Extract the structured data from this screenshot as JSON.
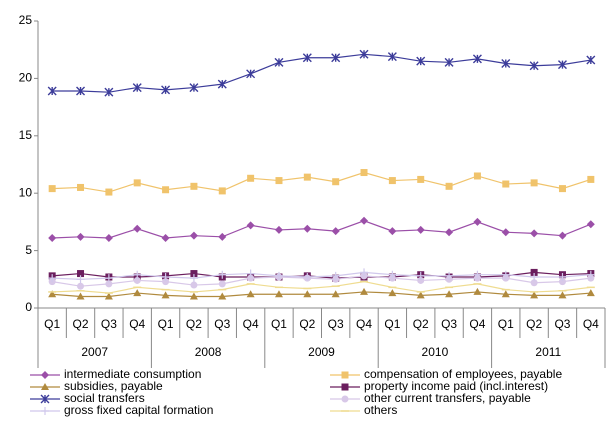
{
  "chart_data": {
    "type": "line",
    "categories": [
      "Q1",
      "Q2",
      "Q3",
      "Q4",
      "Q1",
      "Q2",
      "Q3",
      "Q4",
      "Q1",
      "Q2",
      "Q3",
      "Q4",
      "Q1",
      "Q2",
      "Q3",
      "Q4",
      "Q1",
      "Q2",
      "Q3",
      "Q4"
    ],
    "category_groups": [
      "2007",
      "2008",
      "2009",
      "2010",
      "2011"
    ],
    "ylim": [
      0,
      25
    ],
    "yticks": [
      0,
      5,
      10,
      15,
      20,
      25
    ],
    "legend": "bottom",
    "series": [
      {
        "name": "intermediate consumption",
        "color": "#9b4fa8",
        "marker": "diamond",
        "values": [
          6.1,
          6.2,
          6.1,
          6.9,
          6.1,
          6.3,
          6.2,
          7.2,
          6.8,
          6.9,
          6.7,
          7.6,
          6.7,
          6.8,
          6.6,
          7.5,
          6.6,
          6.5,
          6.3,
          7.3
        ]
      },
      {
        "name": "compensation of employees, payable",
        "color": "#f0c36b",
        "marker": "square",
        "values": [
          10.4,
          10.5,
          10.1,
          10.9,
          10.3,
          10.6,
          10.2,
          11.3,
          11.1,
          11.4,
          11.0,
          11.8,
          11.1,
          11.2,
          10.6,
          11.5,
          10.8,
          10.9,
          10.4,
          11.2
        ]
      },
      {
        "name": "subsidies, payable",
        "color": "#b08a3e",
        "marker": "triangle",
        "values": [
          1.2,
          1.0,
          1.0,
          1.3,
          1.1,
          1.0,
          1.0,
          1.2,
          1.2,
          1.2,
          1.2,
          1.4,
          1.3,
          1.1,
          1.2,
          1.4,
          1.2,
          1.1,
          1.1,
          1.3
        ]
      },
      {
        "name": "property income paid (incl.interest)",
        "color": "#6b1e5e",
        "marker": "square",
        "values": [
          2.8,
          3.0,
          2.7,
          2.7,
          2.8,
          3.0,
          2.7,
          2.7,
          2.7,
          2.8,
          2.6,
          2.7,
          2.7,
          2.9,
          2.7,
          2.7,
          2.8,
          3.1,
          2.9,
          3.0
        ]
      },
      {
        "name": "social transfers",
        "color": "#3c3c9a",
        "marker": "star",
        "values": [
          18.9,
          18.9,
          18.8,
          19.2,
          19.0,
          19.2,
          19.5,
          20.4,
          21.4,
          21.8,
          21.8,
          22.1,
          21.9,
          21.5,
          21.4,
          21.7,
          21.3,
          21.1,
          21.2,
          21.6
        ]
      },
      {
        "name": "other current transfers, payable",
        "color": "#d8c8e8",
        "marker": "circle",
        "values": [
          2.3,
          1.9,
          2.1,
          2.4,
          2.3,
          2.0,
          2.1,
          2.6,
          2.7,
          2.6,
          2.5,
          2.8,
          2.6,
          2.4,
          2.5,
          2.6,
          2.6,
          2.2,
          2.3,
          2.6
        ]
      },
      {
        "name": "gross fixed capital formation",
        "color": "#d0c8ec",
        "marker": "plus",
        "values": [
          2.6,
          2.5,
          2.6,
          2.9,
          2.7,
          2.6,
          2.9,
          3.0,
          2.8,
          2.7,
          2.8,
          3.1,
          2.9,
          2.8,
          2.8,
          2.9,
          2.9,
          2.7,
          2.7,
          2.9
        ]
      },
      {
        "name": "others",
        "color": "#efdc90",
        "marker": "dash",
        "values": [
          1.4,
          1.5,
          1.3,
          1.8,
          1.6,
          1.4,
          1.6,
          2.1,
          1.8,
          1.7,
          1.9,
          2.3,
          1.8,
          1.4,
          1.8,
          2.1,
          1.6,
          1.4,
          1.5,
          1.8
        ]
      }
    ]
  }
}
